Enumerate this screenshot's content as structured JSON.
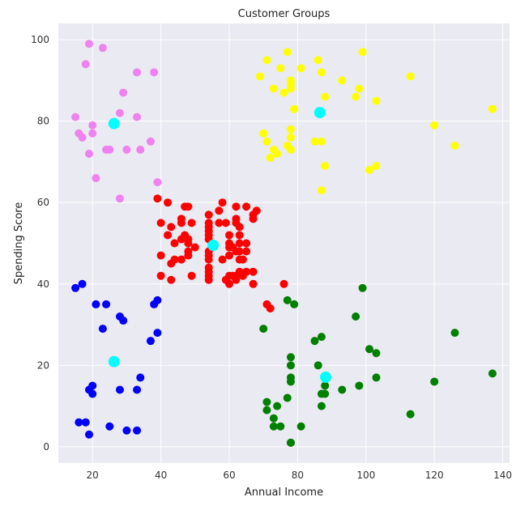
{
  "chart_data": {
    "type": "scatter",
    "title": "Customer Groups",
    "xlabel": "Annual Income",
    "ylabel": "Spending Score",
    "xlim": [
      10,
      142
    ],
    "ylim": [
      -4,
      104
    ],
    "xticks": [
      20,
      40,
      60,
      80,
      100,
      120,
      140
    ],
    "yticks": [
      0,
      20,
      40,
      60,
      80,
      100
    ],
    "grid": true,
    "background": "#eaeaf2",
    "series": [
      {
        "color": "#ee82ee",
        "points": [
          [
            15,
            81
          ],
          [
            16,
            77
          ],
          [
            17,
            76
          ],
          [
            18,
            94
          ],
          [
            19,
            99
          ],
          [
            19,
            72
          ],
          [
            20,
            77
          ],
          [
            20,
            79
          ],
          [
            21,
            66
          ],
          [
            23,
            98
          ],
          [
            24,
            73
          ],
          [
            25,
            73
          ],
          [
            28,
            82
          ],
          [
            28,
            61
          ],
          [
            29,
            87
          ],
          [
            30,
            73
          ],
          [
            33,
            92
          ],
          [
            33,
            81
          ],
          [
            34,
            73
          ],
          [
            37,
            75
          ],
          [
            38,
            92
          ],
          [
            39,
            65
          ]
        ]
      },
      {
        "color": "#ffff00",
        "points": [
          [
            69,
            91
          ],
          [
            70,
            77
          ],
          [
            71,
            95
          ],
          [
            71,
            75
          ],
          [
            72,
            71
          ],
          [
            73,
            88
          ],
          [
            73,
            73
          ],
          [
            74,
            72
          ],
          [
            75,
            93
          ],
          [
            76,
            87
          ],
          [
            77,
            97
          ],
          [
            77,
            74
          ],
          [
            78,
            90
          ],
          [
            78,
            88
          ],
          [
            78,
            89
          ],
          [
            78,
            76
          ],
          [
            78,
            78
          ],
          [
            78,
            73
          ],
          [
            79,
            83
          ],
          [
            81,
            93
          ],
          [
            85,
            75
          ],
          [
            86,
            95
          ],
          [
            87,
            75
          ],
          [
            87,
            92
          ],
          [
            87,
            63
          ],
          [
            88,
            86
          ],
          [
            88,
            69
          ],
          [
            93,
            90
          ],
          [
            97,
            86
          ],
          [
            98,
            88
          ],
          [
            99,
            97
          ],
          [
            101,
            68
          ],
          [
            103,
            85
          ],
          [
            103,
            69
          ],
          [
            113,
            91
          ],
          [
            120,
            79
          ],
          [
            126,
            74
          ],
          [
            137,
            83
          ]
        ]
      },
      {
        "color": "#ff0000",
        "points": [
          [
            39,
            61
          ],
          [
            40,
            55
          ],
          [
            40,
            47
          ],
          [
            40,
            42
          ],
          [
            42,
            52
          ],
          [
            42,
            60
          ],
          [
            43,
            54
          ],
          [
            43,
            45
          ],
          [
            43,
            41
          ],
          [
            44,
            50
          ],
          [
            44,
            46
          ],
          [
            46,
            51
          ],
          [
            46,
            46
          ],
          [
            46,
            56
          ],
          [
            46,
            55
          ],
          [
            47,
            52
          ],
          [
            47,
            59
          ],
          [
            48,
            51
          ],
          [
            48,
            59
          ],
          [
            48,
            50
          ],
          [
            48,
            48
          ],
          [
            48,
            47
          ],
          [
            49,
            55
          ],
          [
            49,
            42
          ],
          [
            50,
            49
          ],
          [
            54,
            53
          ],
          [
            54,
            47
          ],
          [
            54,
            44
          ],
          [
            54,
            51
          ],
          [
            54,
            54
          ],
          [
            54,
            55
          ],
          [
            54,
            41
          ],
          [
            54,
            48
          ],
          [
            54,
            52
          ],
          [
            54,
            57
          ],
          [
            54,
            42
          ],
          [
            54,
            43
          ],
          [
            54,
            46
          ],
          [
            57,
            58
          ],
          [
            57,
            55
          ],
          [
            58,
            60
          ],
          [
            58,
            46
          ],
          [
            59,
            55
          ],
          [
            59,
            41
          ],
          [
            60,
            49
          ],
          [
            60,
            40
          ],
          [
            60,
            42
          ],
          [
            60,
            52
          ],
          [
            60,
            47
          ],
          [
            60,
            50
          ],
          [
            61,
            42
          ],
          [
            61,
            49
          ],
          [
            62,
            41
          ],
          [
            62,
            48
          ],
          [
            62,
            59
          ],
          [
            62,
            55
          ],
          [
            62,
            56
          ],
          [
            62,
            42
          ],
          [
            63,
            50
          ],
          [
            63,
            46
          ],
          [
            63,
            43
          ],
          [
            63,
            48
          ],
          [
            63,
            52
          ],
          [
            63,
            54
          ],
          [
            64,
            42
          ],
          [
            64,
            46
          ],
          [
            65,
            48
          ],
          [
            65,
            50
          ],
          [
            65,
            43
          ],
          [
            65,
            59
          ],
          [
            67,
            43
          ],
          [
            67,
            57
          ],
          [
            67,
            56
          ],
          [
            67,
            40
          ],
          [
            68,
            58
          ],
          [
            71,
            35
          ],
          [
            72,
            34
          ],
          [
            76,
            40
          ]
        ]
      },
      {
        "color": "#0000ff",
        "points": [
          [
            15,
            39
          ],
          [
            16,
            6
          ],
          [
            17,
            40
          ],
          [
            18,
            6
          ],
          [
            19,
            3
          ],
          [
            19,
            14
          ],
          [
            20,
            15
          ],
          [
            20,
            13
          ],
          [
            21,
            35
          ],
          [
            23,
            29
          ],
          [
            24,
            35
          ],
          [
            25,
            5
          ],
          [
            28,
            14
          ],
          [
            28,
            32
          ],
          [
            29,
            31
          ],
          [
            30,
            4
          ],
          [
            33,
            4
          ],
          [
            33,
            14
          ],
          [
            34,
            17
          ],
          [
            37,
            26
          ],
          [
            38,
            35
          ],
          [
            39,
            36
          ],
          [
            39,
            28
          ]
        ]
      },
      {
        "color": "#008000",
        "points": [
          [
            70,
            29
          ],
          [
            71,
            11
          ],
          [
            71,
            9
          ],
          [
            73,
            5
          ],
          [
            73,
            7
          ],
          [
            74,
            10
          ],
          [
            75,
            5
          ],
          [
            77,
            12
          ],
          [
            77,
            36
          ],
          [
            78,
            22
          ],
          [
            78,
            17
          ],
          [
            78,
            20
          ],
          [
            78,
            16
          ],
          [
            78,
            1
          ],
          [
            78,
            1
          ],
          [
            79,
            35
          ],
          [
            81,
            5
          ],
          [
            85,
            26
          ],
          [
            86,
            20
          ],
          [
            87,
            27
          ],
          [
            87,
            13
          ],
          [
            87,
            10
          ],
          [
            88,
            13
          ],
          [
            88,
            15
          ],
          [
            93,
            14
          ],
          [
            97,
            32
          ],
          [
            98,
            15
          ],
          [
            99,
            39
          ],
          [
            101,
            24
          ],
          [
            103,
            17
          ],
          [
            103,
            23
          ],
          [
            113,
            8
          ],
          [
            120,
            16
          ],
          [
            126,
            28
          ],
          [
            137,
            18
          ]
        ]
      },
      {
        "color": "#00ffff",
        "name": "",
        "points": [
          [
            26.3,
            79.4
          ],
          [
            86.5,
            82.1
          ],
          [
            55.3,
            49.5
          ],
          [
            26.3,
            20.9
          ],
          [
            88.2,
            17.1
          ]
        ],
        "large": true
      }
    ]
  }
}
